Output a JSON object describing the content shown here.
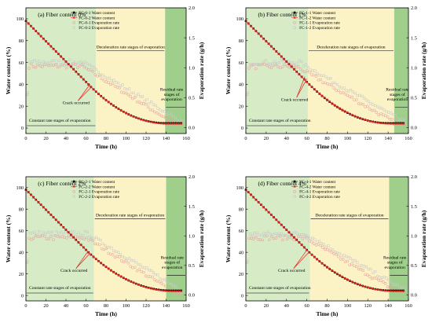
{
  "chart_data": [
    {
      "type": "scatter",
      "title": "(a) Fiber content 0%",
      "xlabel": "Time (h)",
      "ylabel": "Water content (%)",
      "y2label": "Evaporation rate (g/h)",
      "xlim": [
        0,
        160
      ],
      "ylim": [
        -5,
        110
      ],
      "y2lim": [
        -0.1,
        2.0
      ],
      "xticks": [
        0,
        20,
        40,
        60,
        80,
        100,
        120,
        140,
        160
      ],
      "yticks": [
        0,
        20,
        40,
        60,
        80,
        100
      ],
      "y2ticks": [
        0.0,
        0.5,
        1.0,
        1.5,
        2.0
      ],
      "stages": {
        "constant_end": 70,
        "residual_start": 139
      },
      "stage_labels": {
        "constant": "Constant rate stages of evaporation",
        "deceleration": "Deceleration rate stages of evaporation",
        "residual": "Residual rate stages of evaporation"
      },
      "crack_label": "Crack occurred",
      "crack_points": [
        [
          64,
          40
        ],
        [
          66,
          38
        ]
      ],
      "crack_label_pos": [
        50,
        22
      ],
      "legend": [
        "FC-0-1 Water content",
        "FC-0-2 Water content",
        "FC-0-1 Evaporation rate",
        "FC-0-2 Evaporation rate"
      ],
      "series": [
        {
          "name": "FC-0-1 Water content",
          "kind": "water",
          "t_end": 139,
          "w_end": 4.5
        },
        {
          "name": "FC-0-2 Water content",
          "kind": "water",
          "t_end": 141,
          "w_end": 4.0
        },
        {
          "name": "FC-0-1 Evaporation rate",
          "kind": "rate",
          "t_peak": 56,
          "plateau": 1.03,
          "end_t": 150,
          "end_v": 0.05
        },
        {
          "name": "FC-0-2 Evaporation rate",
          "kind": "rate",
          "t_peak": 56,
          "plateau": 1.06,
          "end_t": 156,
          "end_v": 0.05
        }
      ]
    },
    {
      "type": "scatter",
      "title": "(b) Fiber content 1%",
      "xlabel": "Time (h)",
      "ylabel": "Water content (%)",
      "y2label": "Evaporation rate (g/h)",
      "xlim": [
        0,
        160
      ],
      "ylim": [
        -5,
        110
      ],
      "y2lim": [
        -0.1,
        2.0
      ],
      "xticks": [
        0,
        20,
        40,
        60,
        80,
        100,
        120,
        140,
        160
      ],
      "yticks": [
        0,
        20,
        40,
        60,
        80,
        100
      ],
      "y2ticks": [
        0.0,
        0.5,
        1.0,
        1.5,
        2.0
      ],
      "stages": {
        "constant_end": 61,
        "residual_start": 146
      },
      "stage_labels": {
        "constant": "Constant rate stages of evaporation",
        "deceleration": "Deceleration rate stages of evaporation",
        "residual": "Residual rate stages of evaporation"
      },
      "crack_label": "Crack occurred",
      "crack_points": [
        [
          58,
          47
        ],
        [
          60,
          45
        ]
      ],
      "crack_label_pos": [
        48,
        25
      ],
      "legend": [
        "FC-1-1 Water content",
        "FC-1-2 Water content",
        "FC-1-1 Evaporation rate",
        "FC-1-2 Evaporation rate"
      ],
      "series": [
        {
          "name": "FC-1-1 Water content",
          "kind": "water",
          "t_end": 140,
          "w_end": 4.5
        },
        {
          "name": "FC-1-2 Water content",
          "kind": "water",
          "t_end": 143,
          "w_end": 4.0
        },
        {
          "name": "FC-1-1 Evaporation rate",
          "kind": "rate",
          "t_peak": 50,
          "plateau": 1.02,
          "end_t": 150,
          "end_v": 0.05
        },
        {
          "name": "FC-1-2 Evaporation rate",
          "kind": "rate",
          "t_peak": 52,
          "plateau": 1.06,
          "end_t": 156,
          "end_v": 0.05
        }
      ]
    },
    {
      "type": "scatter",
      "title": "(c) Fiber content 2%",
      "xlabel": "Time (h)",
      "ylabel": "Water content (%)",
      "y2label": "Evaporation rate (g/h)",
      "xlim": [
        0,
        160
      ],
      "ylim": [
        -5,
        110
      ],
      "y2lim": [
        -0.1,
        2.0
      ],
      "xticks": [
        0,
        20,
        40,
        60,
        80,
        100,
        120,
        140,
        160
      ],
      "yticks": [
        0,
        20,
        40,
        60,
        80,
        100
      ],
      "y2ticks": [
        0.0,
        0.5,
        1.0,
        1.5,
        2.0
      ],
      "stages": {
        "constant_end": 68,
        "residual_start": 140
      },
      "stage_labels": {
        "constant": "Constant rate stages of evaporation",
        "deceleration": "Deceleration rate stages of evaporation",
        "residual": "Residual rate stages of evaporation"
      },
      "crack_label": "Crack occurred",
      "crack_points": [
        [
          62,
          41
        ],
        [
          64,
          39
        ]
      ],
      "crack_label_pos": [
        48,
        22
      ],
      "legend": [
        "FC-2-1 Water content",
        "FC-2-2 Water content",
        "FC-2-1 Evaporation rate",
        "FC-2-2 Evaporation rate"
      ],
      "series": [
        {
          "name": "FC-2-1 Water content",
          "kind": "water",
          "t_end": 145,
          "w_end": 4.5
        },
        {
          "name": "FC-2-2 Water content",
          "kind": "water",
          "t_end": 147,
          "w_end": 4.0
        },
        {
          "name": "FC-2-1 Evaporation rate",
          "kind": "rate",
          "t_peak": 60,
          "plateau": 0.97,
          "end_t": 150,
          "end_v": 0.03
        },
        {
          "name": "FC-2-2 Evaporation rate",
          "kind": "rate",
          "t_peak": 60,
          "plateau": 1.01,
          "end_t": 156,
          "end_v": 0.03
        }
      ]
    },
    {
      "type": "scatter",
      "title": "(d) Fiber content 4%",
      "xlabel": "Time (h)",
      "ylabel": "Water content (%)",
      "y2label": "Evaporation rate (g/h)",
      "xlim": [
        0,
        160
      ],
      "ylim": [
        -5,
        110
      ],
      "y2lim": [
        -0.1,
        2.0
      ],
      "xticks": [
        0,
        20,
        40,
        60,
        80,
        100,
        120,
        140,
        160
      ],
      "yticks": [
        0,
        20,
        40,
        60,
        80,
        100
      ],
      "y2ticks": [
        0.0,
        0.5,
        1.0,
        1.5,
        2.0
      ],
      "stages": {
        "constant_end": 63,
        "residual_start": 141
      },
      "stage_labels": {
        "constant": "Constant rate stages of evaporation",
        "deceleration": "Deceleration rate stages of evaporation",
        "residual": "Residual rate stages of evaporation"
      },
      "crack_label": "Crack occurred",
      "crack_points": [
        [
          60,
          42
        ],
        [
          62,
          40
        ]
      ],
      "crack_label_pos": [
        45,
        22
      ],
      "legend": [
        "FC-4-1 Water content",
        "FC-4-2 Water content",
        "FC-4-1 Evaporation rate",
        "FC-4-2 Evaporation rate"
      ],
      "series": [
        {
          "name": "FC-4-1 Water content",
          "kind": "water",
          "t_end": 143,
          "w_end": 4.5
        },
        {
          "name": "FC-4-2 Water content",
          "kind": "water",
          "t_end": 146,
          "w_end": 4.0
        },
        {
          "name": "FC-4-1 Evaporation rate",
          "kind": "rate",
          "t_peak": 58,
          "plateau": 0.97,
          "end_t": 150,
          "end_v": 0.05
        },
        {
          "name": "FC-4-2 Evaporation rate",
          "kind": "rate",
          "t_peak": 58,
          "plateau": 1.0,
          "end_t": 156,
          "end_v": 0.05
        }
      ]
    }
  ],
  "colors": {
    "constant_bg": "#d6ebc6",
    "deceleration_bg": "#fbf3c6",
    "residual_bg": "#9fcf8b",
    "series_1": "#000000",
    "series_2": "#e8221b",
    "rate_1": "#e9a3a1",
    "rate_2": "#c9c9c9"
  }
}
